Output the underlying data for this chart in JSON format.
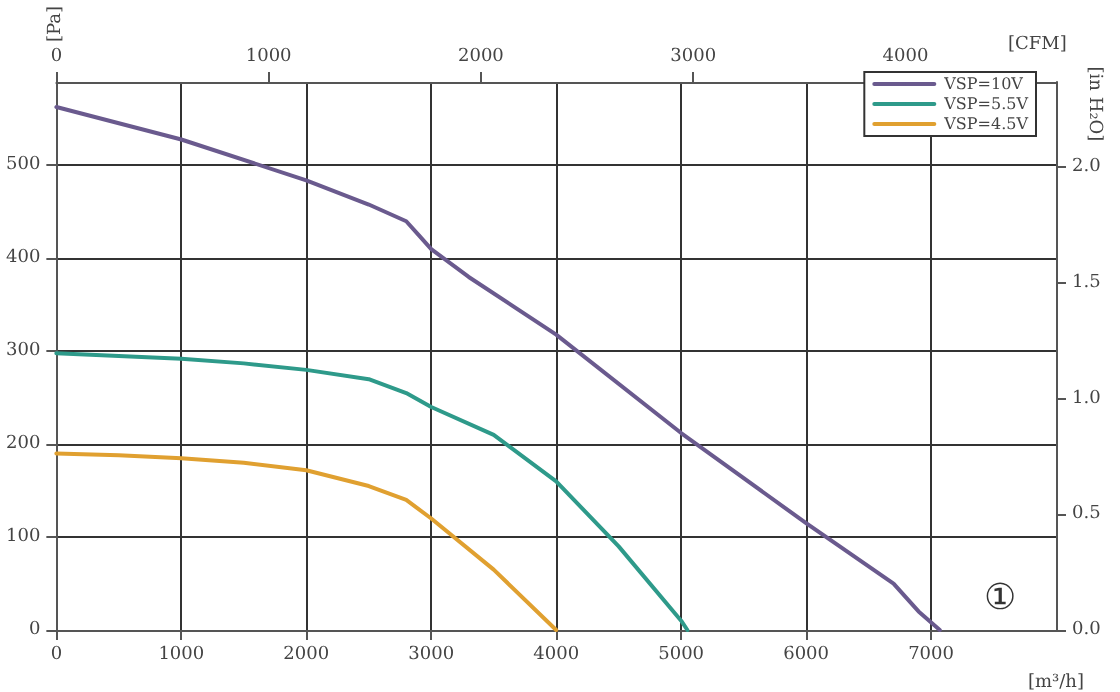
{
  "chart_data": {
    "type": "line",
    "xlabel": "[m³/h]",
    "ylabel": "[Pa]",
    "y2label": "[in H₂O]",
    "x2label": "[CFM]",
    "xlim": [
      0,
      8000
    ],
    "xticks": [
      0,
      1000,
      2000,
      3000,
      4000,
      5000,
      6000,
      7000
    ],
    "ylim": [
      0,
      590
    ],
    "yticks": [
      0,
      100,
      200,
      300,
      400,
      500
    ],
    "x2lim": [
      0,
      4709
    ],
    "x2ticks": [
      0,
      1000,
      2000,
      3000,
      4000
    ],
    "y2lim": [
      0,
      2.369
    ],
    "y2ticks": [
      {
        "value": 0,
        "label": "0.0"
      },
      {
        "value": 0.5,
        "label": "0.5"
      },
      {
        "value": 1,
        "label": "1.0"
      },
      {
        "value": 1.5,
        "label": "1.5"
      },
      {
        "value": 2,
        "label": "2.0"
      }
    ],
    "grid": true,
    "legend": "top right",
    "marker": "none",
    "line_style": "solid",
    "annotations": [
      "①"
    ],
    "series": [
      {
        "name": "VSP=10V",
        "color": "#6a5a8e",
        "x": [
          0,
          1000,
          2000,
          2500,
          2800,
          2900,
          3000,
          3300,
          4000,
          5000,
          6000,
          6700,
          6900,
          7070
        ],
        "values": [
          563,
          528,
          484,
          458,
          440,
          425,
          410,
          380,
          318,
          212,
          115,
          50,
          20,
          0
        ]
      },
      {
        "name": "VSP=5.5V",
        "color": "#2e9a8a",
        "x": [
          0,
          1000,
          1500,
          2000,
          2500,
          2800,
          3000,
          3500,
          4000,
          4500,
          5000,
          5050
        ],
        "values": [
          298,
          292,
          287,
          280,
          270,
          255,
          240,
          210,
          160,
          90,
          10,
          0
        ]
      },
      {
        "name": "VSP=4.5V",
        "color": "#e0a030",
        "x": [
          0,
          500,
          1000,
          1500,
          2000,
          2500,
          2800,
          3000,
          3500,
          4000
        ],
        "values": [
          190,
          188,
          185,
          180,
          172,
          155,
          140,
          120,
          65,
          0
        ]
      }
    ]
  }
}
